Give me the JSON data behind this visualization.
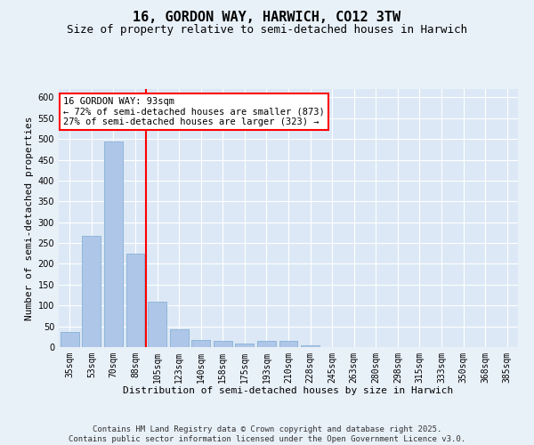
{
  "title": "16, GORDON WAY, HARWICH, CO12 3TW",
  "subtitle": "Size of property relative to semi-detached houses in Harwich",
  "xlabel": "Distribution of semi-detached houses by size in Harwich",
  "ylabel": "Number of semi-detached properties",
  "categories": [
    "35sqm",
    "53sqm",
    "70sqm",
    "88sqm",
    "105sqm",
    "123sqm",
    "140sqm",
    "158sqm",
    "175sqm",
    "193sqm",
    "210sqm",
    "228sqm",
    "245sqm",
    "263sqm",
    "280sqm",
    "298sqm",
    "315sqm",
    "333sqm",
    "350sqm",
    "368sqm",
    "385sqm"
  ],
  "values": [
    37,
    268,
    493,
    225,
    110,
    42,
    18,
    15,
    8,
    14,
    15,
    5,
    1,
    0,
    0,
    0,
    0,
    0,
    1,
    0,
    1
  ],
  "bar_color": "#aec6e8",
  "bar_edge_color": "#7aaad0",
  "red_line_x": 3,
  "annotation_title": "16 GORDON WAY: 93sqm",
  "annotation_line1": "← 72% of semi-detached houses are smaller (873)",
  "annotation_line2": "27% of semi-detached houses are larger (323) →",
  "ylim": [
    0,
    620
  ],
  "yticks": [
    0,
    50,
    100,
    150,
    200,
    250,
    300,
    350,
    400,
    450,
    500,
    550,
    600
  ],
  "footer": "Contains HM Land Registry data © Crown copyright and database right 2025.\nContains public sector information licensed under the Open Government Licence v3.0.",
  "background_color": "#e8f0f8",
  "plot_bg_color": "#dce8f5",
  "grid_color": "#ffffff",
  "title_fontsize": 11,
  "subtitle_fontsize": 9,
  "axis_label_fontsize": 8,
  "tick_fontsize": 7,
  "footer_fontsize": 6.5
}
